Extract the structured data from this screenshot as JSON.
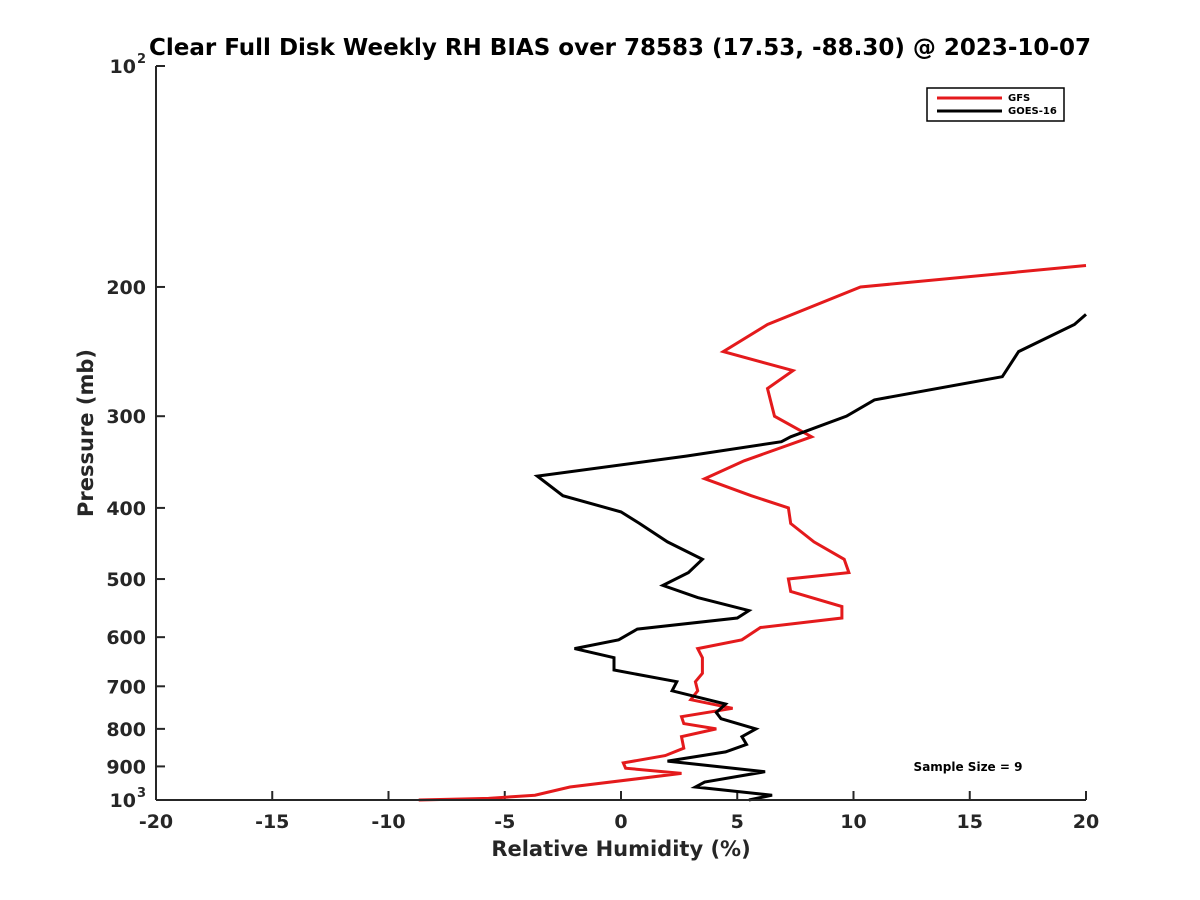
{
  "chart_data": {
    "type": "line",
    "title": "Clear Full Disk Weekly RH BIAS over 78583 (17.53, -88.30) @ 2023-10-07",
    "xlabel": "Relative Humidity (%)",
    "ylabel": "Pressure (mb)",
    "xlim": [
      -20,
      20
    ],
    "ylim": [
      100,
      1000
    ],
    "y_scale": "log",
    "y_reversed": true,
    "grid": false,
    "legend_position": "top-right",
    "x_ticks": [
      {
        "value": -20,
        "label": "-20"
      },
      {
        "value": -15,
        "label": "-15"
      },
      {
        "value": -10,
        "label": "-10"
      },
      {
        "value": -5,
        "label": "-5"
      },
      {
        "value": 0,
        "label": "0"
      },
      {
        "value": 5,
        "label": "5"
      },
      {
        "value": 10,
        "label": "10"
      },
      {
        "value": 15,
        "label": "15"
      },
      {
        "value": 20,
        "label": "20"
      }
    ],
    "y_ticks": [
      {
        "value": 100,
        "label": "10",
        "exponent": "2"
      },
      {
        "value": 200,
        "label": "200",
        "exponent": ""
      },
      {
        "value": 300,
        "label": "300",
        "exponent": ""
      },
      {
        "value": 400,
        "label": "400",
        "exponent": ""
      },
      {
        "value": 500,
        "label": "500",
        "exponent": ""
      },
      {
        "value": 600,
        "label": "600",
        "exponent": ""
      },
      {
        "value": 700,
        "label": "700",
        "exponent": ""
      },
      {
        "value": 800,
        "label": "800",
        "exponent": ""
      },
      {
        "value": 900,
        "label": "900",
        "exponent": ""
      },
      {
        "value": 1000,
        "label": "10",
        "exponent": "3"
      }
    ],
    "series": [
      {
        "name": "GFS",
        "color": "#e41a1c",
        "points": [
          [
            20.0,
            187
          ],
          [
            10.3,
            200
          ],
          [
            6.3,
            225
          ],
          [
            4.4,
            245
          ],
          [
            7.4,
            260
          ],
          [
            6.3,
            275
          ],
          [
            6.6,
            300
          ],
          [
            8.2,
            320
          ],
          [
            5.3,
            345
          ],
          [
            3.6,
            365
          ],
          [
            5.6,
            385
          ],
          [
            7.2,
            400
          ],
          [
            7.3,
            420
          ],
          [
            8.3,
            445
          ],
          [
            9.6,
            470
          ],
          [
            9.8,
            490
          ],
          [
            7.2,
            500
          ],
          [
            7.3,
            520
          ],
          [
            9.5,
            545
          ],
          [
            9.5,
            565
          ],
          [
            6.0,
            582
          ],
          [
            5.2,
            605
          ],
          [
            3.3,
            622
          ],
          [
            3.5,
            640
          ],
          [
            3.5,
            672
          ],
          [
            3.2,
            690
          ],
          [
            3.3,
            710
          ],
          [
            3.0,
            730
          ],
          [
            4.8,
            750
          ],
          [
            2.6,
            770
          ],
          [
            2.7,
            787
          ],
          [
            4.1,
            800
          ],
          [
            2.6,
            820
          ],
          [
            2.7,
            850
          ],
          [
            1.9,
            870
          ],
          [
            0.1,
            890
          ],
          [
            0.2,
            905
          ],
          [
            2.6,
            920
          ],
          [
            -2.2,
            960
          ],
          [
            -3.7,
            985
          ],
          [
            -5.7,
            995
          ],
          [
            -8.7,
            1000
          ]
        ]
      },
      {
        "name": "GOES-16",
        "color": "#000000",
        "points": [
          [
            20.0,
            218
          ],
          [
            19.5,
            225
          ],
          [
            17.1,
            245
          ],
          [
            16.4,
            265
          ],
          [
            10.9,
            285
          ],
          [
            9.7,
            300
          ],
          [
            7.3,
            320
          ],
          [
            6.9,
            325
          ],
          [
            2.8,
            340
          ],
          [
            -3.6,
            362
          ],
          [
            -2.5,
            385
          ],
          [
            0.0,
            405
          ],
          [
            0.8,
            420
          ],
          [
            2.0,
            445
          ],
          [
            3.5,
            470
          ],
          [
            2.9,
            490
          ],
          [
            1.8,
            510
          ],
          [
            3.3,
            530
          ],
          [
            5.5,
            552
          ],
          [
            5.0,
            565
          ],
          [
            0.7,
            585
          ],
          [
            -0.1,
            605
          ],
          [
            -2.0,
            622
          ],
          [
            -0.3,
            640
          ],
          [
            -0.3,
            665
          ],
          [
            2.4,
            690
          ],
          [
            2.2,
            710
          ],
          [
            4.5,
            740
          ],
          [
            4.1,
            760
          ],
          [
            4.3,
            775
          ],
          [
            5.8,
            800
          ],
          [
            5.2,
            820
          ],
          [
            5.4,
            840
          ],
          [
            4.5,
            860
          ],
          [
            2.0,
            885
          ],
          [
            6.2,
            915
          ],
          [
            3.6,
            945
          ],
          [
            3.2,
            960
          ],
          [
            6.5,
            985
          ],
          [
            5.5,
            1000
          ]
        ]
      }
    ],
    "annotations": [
      {
        "text": "Sample Size = 9"
      }
    ]
  }
}
